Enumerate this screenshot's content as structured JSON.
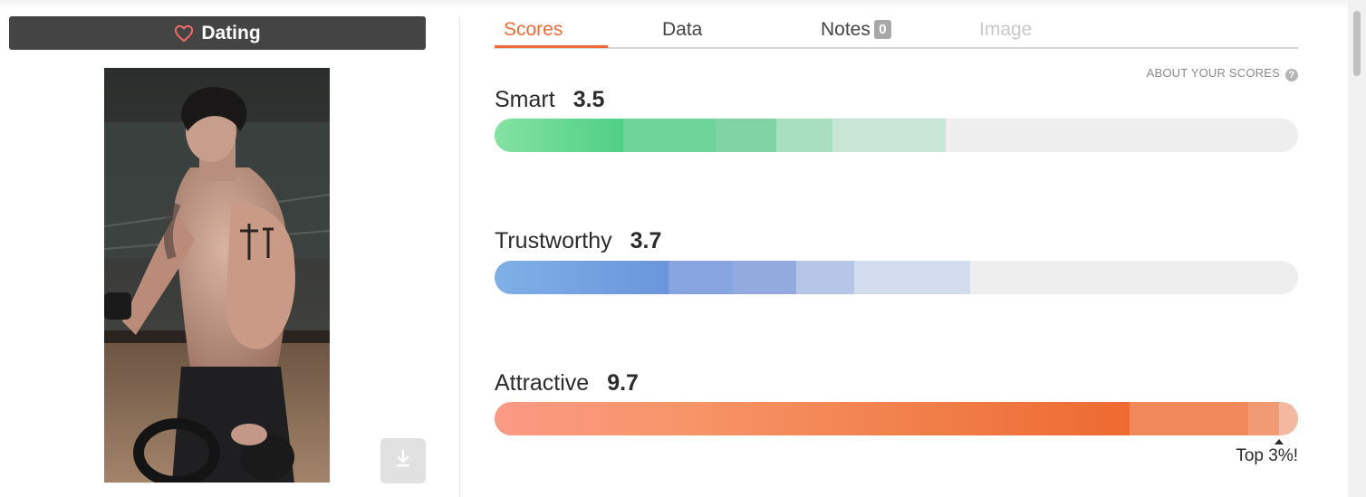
{
  "category": {
    "label": "Dating",
    "icon": "heart-icon",
    "icon_color": "#f06a6a"
  },
  "tabs": [
    {
      "label": "Scores",
      "state": "active"
    },
    {
      "label": "Data",
      "state": "normal"
    },
    {
      "label": "Notes",
      "badge": "0",
      "state": "normal"
    },
    {
      "label": "Image",
      "state": "disabled"
    }
  ],
  "about_link": "ABOUT YOUR SCORES",
  "scores": [
    {
      "label": "Smart",
      "value": "3.5",
      "fill_fraction": 0.56
    },
    {
      "label": "Trustworthy",
      "value": "3.7",
      "fill_fraction": 0.59
    },
    {
      "label": "Attractive",
      "value": "9.7",
      "fill_fraction": 1.0,
      "note": "Top 3%!"
    }
  ],
  "colors": {
    "accent": "#ee6a3a",
    "smart": "#5fd08e",
    "trustworthy": "#6a98de",
    "attractive": "#f26d3a",
    "bar_track": "#eeeeee"
  },
  "photo": {
    "icon": "photo-of-person"
  },
  "download": {
    "icon": "download-icon"
  }
}
